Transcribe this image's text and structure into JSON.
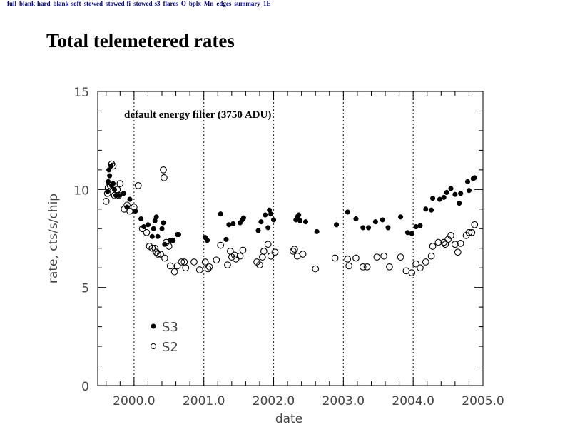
{
  "nav": {
    "links": [
      "full",
      "blank-hard",
      "blank-soft",
      "stowed",
      "stowed-fi",
      "stowed-s3",
      "flares",
      "O",
      "bplx",
      "Mn",
      "edges",
      "summary",
      "1E"
    ]
  },
  "page": {
    "title": "Total telemetered rates"
  },
  "chart_data": {
    "type": "scatter",
    "title": "",
    "annotation": "default energy filter (3750 ADU)",
    "xlabel": "date",
    "ylabel": "rate, cts/s/chip",
    "xlim": [
      1999.48,
      2005.0
    ],
    "ylim": [
      0,
      15
    ],
    "xticks": [
      2000.0,
      2001.0,
      2002.0,
      2003.0,
      2004.0,
      2005.0
    ],
    "xtick_labels": [
      "2000.0",
      "2001.0",
      "2002.0",
      "2003.0",
      "2004.0",
      "2005.0"
    ],
    "yticks": [
      0,
      5,
      10,
      15
    ],
    "ytick_labels": [
      "0",
      "5",
      "10",
      "15"
    ],
    "vertical_dotted_lines": [
      2000.0,
      2001.0,
      2002.0,
      2003.0,
      2004.0
    ],
    "grid": false,
    "legend": {
      "placement": "bottom-left",
      "entries": [
        {
          "name": "S3",
          "marker": "filled-circle"
        },
        {
          "name": "S2",
          "marker": "open-circle"
        }
      ]
    },
    "series": [
      {
        "name": "S3",
        "marker": "filled-circle",
        "points": [
          [
            1999.62,
            9.9
          ],
          [
            1999.63,
            10.4
          ],
          [
            1999.64,
            11.0
          ],
          [
            1999.65,
            10.7
          ],
          [
            1999.67,
            11.2
          ],
          [
            1999.68,
            10.2
          ],
          [
            1999.7,
            10.3
          ],
          [
            1999.72,
            10.0
          ],
          [
            1999.74,
            9.7
          ],
          [
            1999.78,
            9.7
          ],
          [
            1999.85,
            9.8
          ],
          [
            1999.9,
            9.1
          ],
          [
            1999.94,
            9.5
          ],
          [
            2000.02,
            8.9
          ],
          [
            2000.1,
            8.5
          ],
          [
            2000.14,
            8.1
          ],
          [
            2000.2,
            8.2
          ],
          [
            2000.26,
            7.6
          ],
          [
            2000.28,
            8.0
          ],
          [
            2000.3,
            8.4
          ],
          [
            2000.32,
            8.6
          ],
          [
            2000.34,
            7.6
          ],
          [
            2000.4,
            8.0
          ],
          [
            2000.42,
            8.3
          ],
          [
            2000.44,
            7.2
          ],
          [
            2000.52,
            7.4
          ],
          [
            2000.56,
            7.4
          ],
          [
            2000.62,
            7.7
          ],
          [
            2000.64,
            7.7
          ],
          [
            2001.02,
            7.55
          ],
          [
            2001.05,
            7.4
          ],
          [
            2001.24,
            8.75
          ],
          [
            2001.32,
            7.45
          ],
          [
            2001.36,
            8.2
          ],
          [
            2001.42,
            8.25
          ],
          [
            2001.52,
            8.3
          ],
          [
            2001.55,
            8.45
          ],
          [
            2001.57,
            8.55
          ],
          [
            2001.78,
            7.9
          ],
          [
            2001.82,
            8.35
          ],
          [
            2001.88,
            8.7
          ],
          [
            2001.92,
            8.05
          ],
          [
            2001.94,
            8.95
          ],
          [
            2001.96,
            8.75
          ],
          [
            2002.0,
            8.45
          ],
          [
            2002.32,
            8.45
          ],
          [
            2002.34,
            8.6
          ],
          [
            2002.36,
            8.7
          ],
          [
            2002.38,
            8.4
          ],
          [
            2002.46,
            8.35
          ],
          [
            2002.62,
            7.85
          ],
          [
            2002.9,
            8.2
          ],
          [
            2003.06,
            8.85
          ],
          [
            2003.18,
            8.5
          ],
          [
            2003.28,
            8.05
          ],
          [
            2003.36,
            8.05
          ],
          [
            2003.46,
            8.35
          ],
          [
            2003.56,
            8.45
          ],
          [
            2003.64,
            8.05
          ],
          [
            2003.82,
            8.6
          ],
          [
            2003.92,
            7.8
          ],
          [
            2003.98,
            7.75
          ],
          [
            2004.04,
            8.1
          ],
          [
            2004.1,
            8.15
          ],
          [
            2004.18,
            9.0
          ],
          [
            2004.26,
            8.95
          ],
          [
            2004.28,
            9.55
          ],
          [
            2004.38,
            9.5
          ],
          [
            2004.44,
            9.6
          ],
          [
            2004.48,
            9.85
          ],
          [
            2004.54,
            10.05
          ],
          [
            2004.6,
            9.75
          ],
          [
            2004.66,
            9.3
          ],
          [
            2004.68,
            9.8
          ],
          [
            2004.78,
            10.4
          ],
          [
            2004.8,
            9.95
          ],
          [
            2004.86,
            10.55
          ],
          [
            2004.88,
            10.6
          ]
        ]
      },
      {
        "name": "S2",
        "marker": "open-circle",
        "points": [
          [
            1999.6,
            9.4
          ],
          [
            1999.62,
            9.8
          ],
          [
            1999.63,
            10.1
          ],
          [
            1999.66,
            10.2
          ],
          [
            1999.68,
            11.3
          ],
          [
            1999.7,
            11.2
          ],
          [
            1999.72,
            9.7
          ],
          [
            1999.76,
            10.0
          ],
          [
            1999.78,
            9.7
          ],
          [
            1999.8,
            10.3
          ],
          [
            1999.86,
            9.0
          ],
          [
            1999.9,
            9.2
          ],
          [
            1999.94,
            8.9
          ],
          [
            2000.0,
            9.1
          ],
          [
            2000.06,
            10.2
          ],
          [
            2000.12,
            8.0
          ],
          [
            2000.18,
            7.8
          ],
          [
            2000.22,
            7.1
          ],
          [
            2000.26,
            7.0
          ],
          [
            2000.3,
            7.0
          ],
          [
            2000.32,
            6.8
          ],
          [
            2000.34,
            6.7
          ],
          [
            2000.38,
            6.7
          ],
          [
            2000.42,
            11.0
          ],
          [
            2000.43,
            10.6
          ],
          [
            2000.44,
            6.5
          ],
          [
            2000.46,
            7.3
          ],
          [
            2000.5,
            7.1
          ],
          [
            2000.52,
            6.1
          ],
          [
            2000.58,
            5.8
          ],
          [
            2000.62,
            6.1
          ],
          [
            2000.68,
            6.3
          ],
          [
            2000.72,
            6.3
          ],
          [
            2000.74,
            6.0
          ],
          [
            2000.86,
            6.3
          ],
          [
            2000.94,
            5.9
          ],
          [
            2001.02,
            6.3
          ],
          [
            2001.06,
            5.95
          ],
          [
            2001.08,
            6.05
          ],
          [
            2001.18,
            6.4
          ],
          [
            2001.24,
            7.15
          ],
          [
            2001.34,
            6.15
          ],
          [
            2001.38,
            6.85
          ],
          [
            2001.4,
            6.55
          ],
          [
            2001.44,
            6.65
          ],
          [
            2001.46,
            6.45
          ],
          [
            2001.52,
            6.6
          ],
          [
            2001.56,
            6.9
          ],
          [
            2001.76,
            6.3
          ],
          [
            2001.8,
            6.15
          ],
          [
            2001.84,
            6.55
          ],
          [
            2001.86,
            6.85
          ],
          [
            2001.92,
            7.2
          ],
          [
            2001.96,
            6.6
          ],
          [
            2002.02,
            6.8
          ],
          [
            2002.28,
            6.85
          ],
          [
            2002.3,
            6.95
          ],
          [
            2002.34,
            6.6
          ],
          [
            2002.42,
            6.7
          ],
          [
            2002.6,
            5.95
          ],
          [
            2002.88,
            6.5
          ],
          [
            2003.06,
            6.45
          ],
          [
            2003.08,
            6.1
          ],
          [
            2003.18,
            6.5
          ],
          [
            2003.28,
            6.05
          ],
          [
            2003.34,
            6.05
          ],
          [
            2003.48,
            6.55
          ],
          [
            2003.58,
            6.6
          ],
          [
            2003.66,
            6.05
          ],
          [
            2003.82,
            6.55
          ],
          [
            2003.9,
            5.85
          ],
          [
            2003.98,
            5.75
          ],
          [
            2004.04,
            6.2
          ],
          [
            2004.1,
            6.0
          ],
          [
            2004.18,
            6.3
          ],
          [
            2004.26,
            6.6
          ],
          [
            2004.28,
            7.1
          ],
          [
            2004.36,
            7.3
          ],
          [
            2004.44,
            7.3
          ],
          [
            2004.46,
            7.2
          ],
          [
            2004.5,
            7.45
          ],
          [
            2004.54,
            7.65
          ],
          [
            2004.6,
            7.2
          ],
          [
            2004.64,
            6.8
          ],
          [
            2004.68,
            7.25
          ],
          [
            2004.76,
            7.65
          ],
          [
            2004.8,
            7.8
          ],
          [
            2004.84,
            7.8
          ],
          [
            2004.88,
            8.2
          ]
        ]
      }
    ]
  }
}
